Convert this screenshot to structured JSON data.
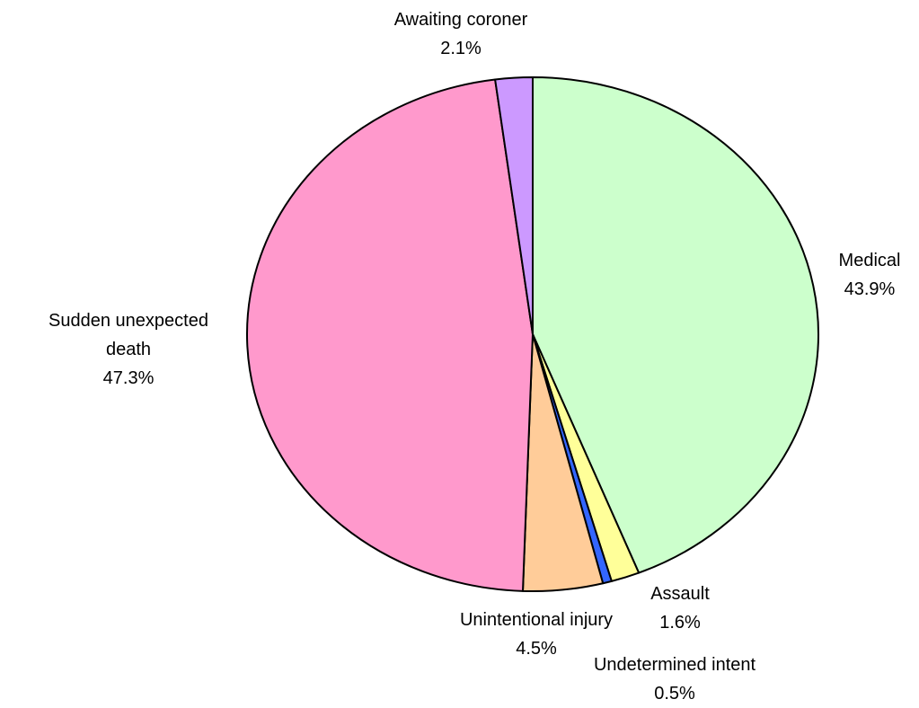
{
  "chart_data": {
    "type": "pie",
    "categories": [
      "Medical",
      "Assault",
      "Undetermined intent",
      "Unintentional injury",
      "Sudden unexpected death",
      "Awaiting coroner"
    ],
    "values": [
      43.9,
      1.6,
      0.5,
      4.5,
      47.3,
      2.1
    ],
    "value_labels": [
      "43.9%",
      "1.6%",
      "0.5%",
      "4.5%",
      "47.3%",
      "2.1%"
    ],
    "colors": [
      "#ccffcc",
      "#ffff99",
      "#3366ff",
      "#ffcc99",
      "#ff99cc",
      "#cc99ff"
    ]
  }
}
